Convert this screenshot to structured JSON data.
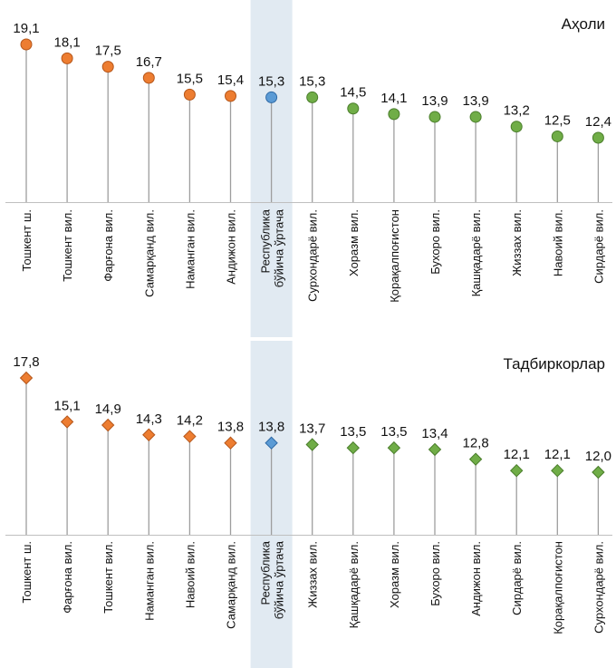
{
  "chart_data": [
    {
      "type": "scatter",
      "title": "Аҳоли",
      "categories": [
        "Тошкент ш.",
        "Тошкент вил.",
        "Фарғона вил.",
        "Самарқанд вил.",
        "Наманган вил.",
        "Андижон вил.",
        "Республика бўйича ўртача",
        "Сурхондарё вил.",
        "Хоразм вил.",
        "Қорақалпоғистон",
        "Бухоро вил.",
        "Қашқадарё вил.",
        "Жиззах вил.",
        "Навоий вил.",
        "Сирдарё вил."
      ],
      "values": [
        19.1,
        18.1,
        17.5,
        16.7,
        15.5,
        15.4,
        15.3,
        15.3,
        14.5,
        14.1,
        13.9,
        13.9,
        13.2,
        12.5,
        12.4
      ],
      "value_labels": [
        "19,1",
        "18,1",
        "17,5",
        "16,7",
        "15,5",
        "15,4",
        "15,3",
        "15,3",
        "14,5",
        "14,1",
        "13,9",
        "13,9",
        "13,2",
        "12,5",
        "12,4"
      ],
      "marker": "circle",
      "colors": {
        "above": "#ED7D31",
        "average": "#5B9BD5",
        "below": "#70AD47"
      },
      "highlight_index": 6
    },
    {
      "type": "scatter",
      "title": "Тадбиркорлар",
      "categories": [
        "Тошкент ш.",
        "Фарғона вил.",
        "Тошкент вил.",
        "Наманган вил.",
        "Навоий вил.",
        "Самарқанд вил.",
        "Республика бўйича ўртача",
        "Жиззах вил.",
        "Қашқадарё вил.",
        "Хоразм вил.",
        "Бухоро вил.",
        "Андижон вил.",
        "Сирдарё вил.",
        "Қорақалпоғистон",
        "Сурхондарё вил."
      ],
      "values": [
        17.8,
        15.1,
        14.9,
        14.3,
        14.2,
        13.8,
        13.8,
        13.7,
        13.5,
        13.5,
        13.4,
        12.8,
        12.1,
        12.1,
        12.0
      ],
      "value_labels": [
        "17,8",
        "15,1",
        "14,9",
        "14,3",
        "14,2",
        "13,8",
        "13,8",
        "13,7",
        "13,5",
        "13,5",
        "13,4",
        "12,8",
        "12,1",
        "12,1",
        "12,0"
      ],
      "marker": "diamond",
      "colors": {
        "above": "#ED7D31",
        "average": "#5B9BD5",
        "below": "#70AD47"
      },
      "highlight_index": 6
    }
  ]
}
